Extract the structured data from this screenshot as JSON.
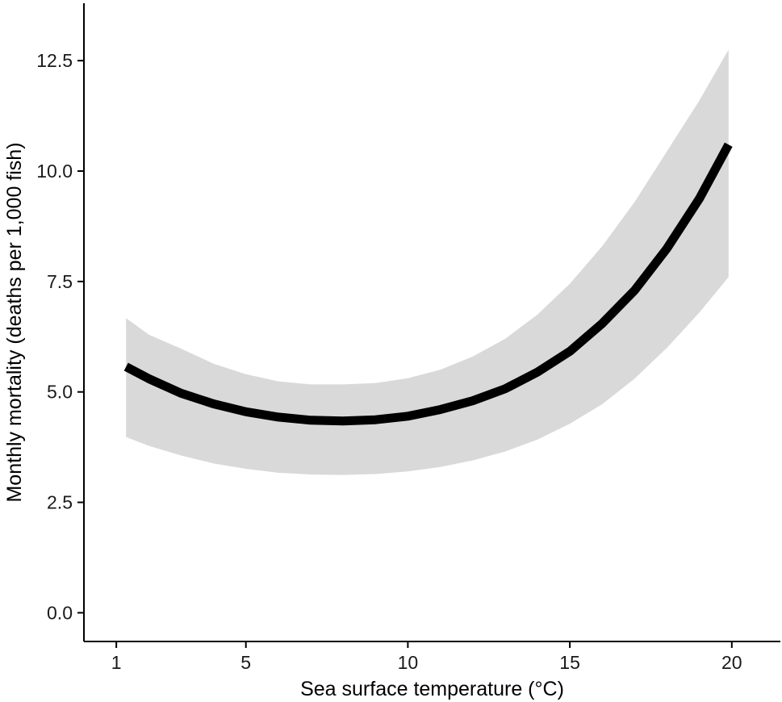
{
  "chart_data": {
    "type": "line",
    "xlabel": "Sea surface temperature (°C)",
    "ylabel": "Monthly mortality (deaths per 1,000 fish)",
    "xlim": [
      0,
      21.5
    ],
    "ylim": [
      -0.65,
      13.8
    ],
    "x_ticks": [
      1,
      5,
      10,
      15,
      20
    ],
    "y_ticks": [
      0.0,
      2.5,
      5.0,
      7.5,
      10.0,
      12.5
    ],
    "grid": false,
    "legend": "none",
    "colors": {
      "line": "#000000",
      "band": "#d9d9d9",
      "axis": "#000000"
    },
    "x": [
      1.3,
      2,
      3,
      4,
      5,
      6,
      7,
      8,
      9,
      10,
      11,
      12,
      13,
      14,
      15,
      16,
      17,
      18,
      19,
      19.9
    ],
    "series": [
      {
        "values": [
          5.57,
          5.3,
          4.97,
          4.73,
          4.55,
          4.43,
          4.36,
          4.34,
          4.37,
          4.45,
          4.6,
          4.8,
          5.07,
          5.45,
          5.92,
          6.55,
          7.3,
          8.25,
          9.38,
          10.6
        ],
        "lower": [
          3.98,
          3.78,
          3.56,
          3.38,
          3.26,
          3.17,
          3.13,
          3.12,
          3.14,
          3.2,
          3.3,
          3.45,
          3.65,
          3.92,
          4.28,
          4.72,
          5.3,
          6.0,
          6.8,
          7.6
        ],
        "upper": [
          6.67,
          6.3,
          5.98,
          5.64,
          5.4,
          5.24,
          5.17,
          5.17,
          5.2,
          5.31,
          5.5,
          5.8,
          6.2,
          6.75,
          7.45,
          8.3,
          9.3,
          10.45,
          11.6,
          12.75
        ]
      }
    ]
  }
}
